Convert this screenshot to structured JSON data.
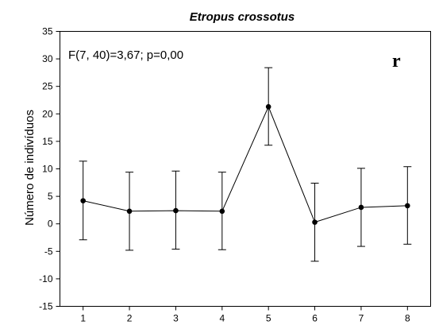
{
  "chart_data": {
    "type": "line",
    "title": "Etropus crossotus",
    "ylabel": "Número de indivíduos",
    "xlabel": "",
    "annotation": "F(7, 40)=3,67; p=0,00",
    "panel_label": "r",
    "x": [
      1,
      2,
      3,
      4,
      5,
      6,
      7,
      8
    ],
    "x_tick_labels": [
      "1",
      "2",
      "3",
      "4",
      "5",
      "6",
      "7",
      "8"
    ],
    "y_tick_labels": [
      "35",
      "30",
      "25",
      "20",
      "15",
      "10",
      "5",
      "0",
      "-5",
      "-10",
      "-15"
    ],
    "xlim": [
      0.5,
      8.5
    ],
    "ylim": [
      -15,
      35
    ],
    "y_ticks": [
      -15,
      -10,
      -5,
      0,
      5,
      10,
      15,
      20,
      25,
      30,
      35
    ],
    "grid": false,
    "series": [
      {
        "values": [
          4.2,
          2.3,
          2.4,
          2.3,
          21.3,
          0.3,
          3.0,
          3.3
        ],
        "error_low": [
          -2.9,
          -4.8,
          -4.6,
          -4.7,
          14.3,
          -6.8,
          -4.1,
          -3.7
        ],
        "error_high": [
          11.4,
          9.4,
          9.6,
          9.4,
          28.4,
          7.4,
          10.1,
          10.4
        ]
      }
    ]
  }
}
